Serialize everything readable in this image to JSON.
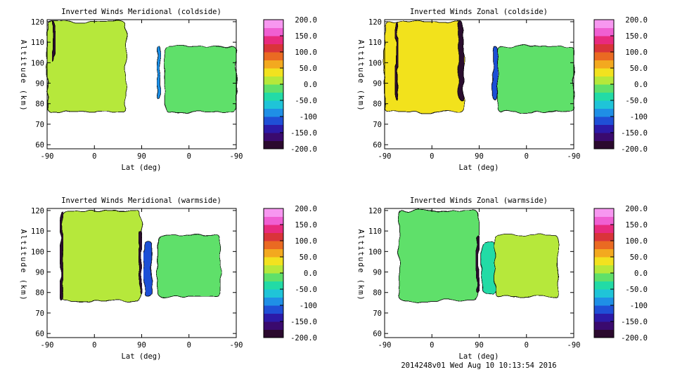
{
  "footer": "2014248v01 Wed Aug 10 10:13:54 2016",
  "palette": [
    "#2b0a2e",
    "#3a0a6e",
    "#2c1aa8",
    "#1f4fd6",
    "#1f8fe6",
    "#1fc4d8",
    "#22dba6",
    "#5fe06a",
    "#b6e83a",
    "#f2e21f",
    "#f3a91f",
    "#ea6a22",
    "#d9343a",
    "#e82a7e",
    "#f05fd2",
    "#f797f0"
  ],
  "chart_data": [
    {
      "type": "heatmap",
      "title": "Inverted Winds Meridional (coldside)",
      "xlabel": "Lat (deg)",
      "ylabel": "Altitude (km)",
      "x_ticks": [
        "-90",
        "0",
        "90",
        "0",
        "-90"
      ],
      "y_ticks": [
        "60",
        "70",
        "80",
        "90",
        "100",
        "110",
        "120"
      ],
      "ylim": [
        58,
        121
      ],
      "colorbar": {
        "ticks": [
          "200.0",
          "150.0",
          "100.0",
          "50.0",
          "0.0",
          "-50.0",
          "-100",
          "-150.0",
          "-200.0"
        ],
        "range": [
          -200,
          200
        ]
      },
      "regions": [
        {
          "x": [
            -90,
            60
          ],
          "y": [
            76,
            120
          ],
          "value": 10
        },
        {
          "x": [
            -80,
            -75
          ],
          "y": [
            100,
            120
          ],
          "value": -200
        },
        {
          "x": [
            120,
            126
          ],
          "y": [
            82,
            108
          ],
          "value": -90
        },
        {
          "x": [
            135,
            270
          ],
          "y": [
            76,
            108
          ],
          "value": -20
        }
      ]
    },
    {
      "type": "heatmap",
      "title": "Inverted Winds Zonal (coldside)",
      "xlabel": "Lat (deg)",
      "ylabel": "Altitude (km)",
      "x_ticks": [
        "-90",
        "0",
        "90",
        "0",
        "-90"
      ],
      "y_ticks": [
        "60",
        "70",
        "80",
        "90",
        "100",
        "110",
        "120"
      ],
      "ylim": [
        58,
        121
      ],
      "colorbar": {
        "ticks": [
          "200.0",
          "150.0",
          "100.0",
          "50.0",
          "0.0",
          "-50.0",
          "-100",
          "-150.0",
          "-200.0"
        ],
        "range": [
          -200,
          200
        ]
      },
      "regions": [
        {
          "x": [
            -90,
            60
          ],
          "y": [
            76,
            120
          ],
          "value": 30
        },
        {
          "x": [
            -70,
            -65
          ],
          "y": [
            82,
            120
          ],
          "value": -200
        },
        {
          "x": [
            50,
            60
          ],
          "y": [
            82,
            120
          ],
          "value": -200
        },
        {
          "x": [
            115,
            125
          ],
          "y": [
            82,
            108
          ],
          "value": -110
        },
        {
          "x": [
            125,
            270
          ],
          "y": [
            76,
            108
          ],
          "value": -10
        }
      ]
    },
    {
      "type": "heatmap",
      "title": "Inverted Winds Meridional (warmside)",
      "xlabel": "Lat (deg)",
      "ylabel": "Altitude (km)",
      "x_ticks": [
        "-90",
        "0",
        "90",
        "0",
        "-90"
      ],
      "y_ticks": [
        "60",
        "70",
        "80",
        "90",
        "100",
        "110",
        "120"
      ],
      "ylim": [
        58,
        121
      ],
      "colorbar": {
        "ticks": [
          "200.0",
          "150.0",
          "100.0",
          "50.0",
          "0.0",
          "-50.0",
          "-100",
          "-150.0",
          "-200.0"
        ],
        "range": [
          -200,
          200
        ]
      },
      "regions": [
        {
          "x": [
            -62,
            88
          ],
          "y": [
            76,
            120
          ],
          "value": 10
        },
        {
          "x": [
            -65,
            -60
          ],
          "y": [
            76,
            120
          ],
          "value": -200
        },
        {
          "x": [
            85,
            90
          ],
          "y": [
            80,
            110
          ],
          "value": -200
        },
        {
          "x": [
            95,
            110
          ],
          "y": [
            78,
            105
          ],
          "value": -120
        },
        {
          "x": [
            120,
            240
          ],
          "y": [
            78,
            108
          ],
          "value": -20
        }
      ]
    },
    {
      "type": "heatmap",
      "title": "Inverted Winds Zonal (warmside)",
      "xlabel": "Lat (deg)",
      "ylabel": "Altitude (km)",
      "x_ticks": [
        "-90",
        "0",
        "90",
        "0",
        "-90"
      ],
      "y_ticks": [
        "60",
        "70",
        "80",
        "90",
        "100",
        "110",
        "120"
      ],
      "ylim": [
        58,
        121
      ],
      "colorbar": {
        "ticks": [
          "200.0",
          "150.0",
          "100.0",
          "50.0",
          "0.0",
          "-50.0",
          "-100",
          "-150.0",
          "-200.0"
        ],
        "range": [
          -200,
          200
        ]
      },
      "regions": [
        {
          "x": [
            -62,
            88
          ],
          "y": [
            76,
            120
          ],
          "value": -10
        },
        {
          "x": [
            84,
            90
          ],
          "y": [
            80,
            108
          ],
          "value": -200
        },
        {
          "x": [
            95,
            120
          ],
          "y": [
            80,
            105
          ],
          "value": -40
        },
        {
          "x": [
            120,
            240
          ],
          "y": [
            78,
            108
          ],
          "value": 20
        }
      ]
    }
  ]
}
